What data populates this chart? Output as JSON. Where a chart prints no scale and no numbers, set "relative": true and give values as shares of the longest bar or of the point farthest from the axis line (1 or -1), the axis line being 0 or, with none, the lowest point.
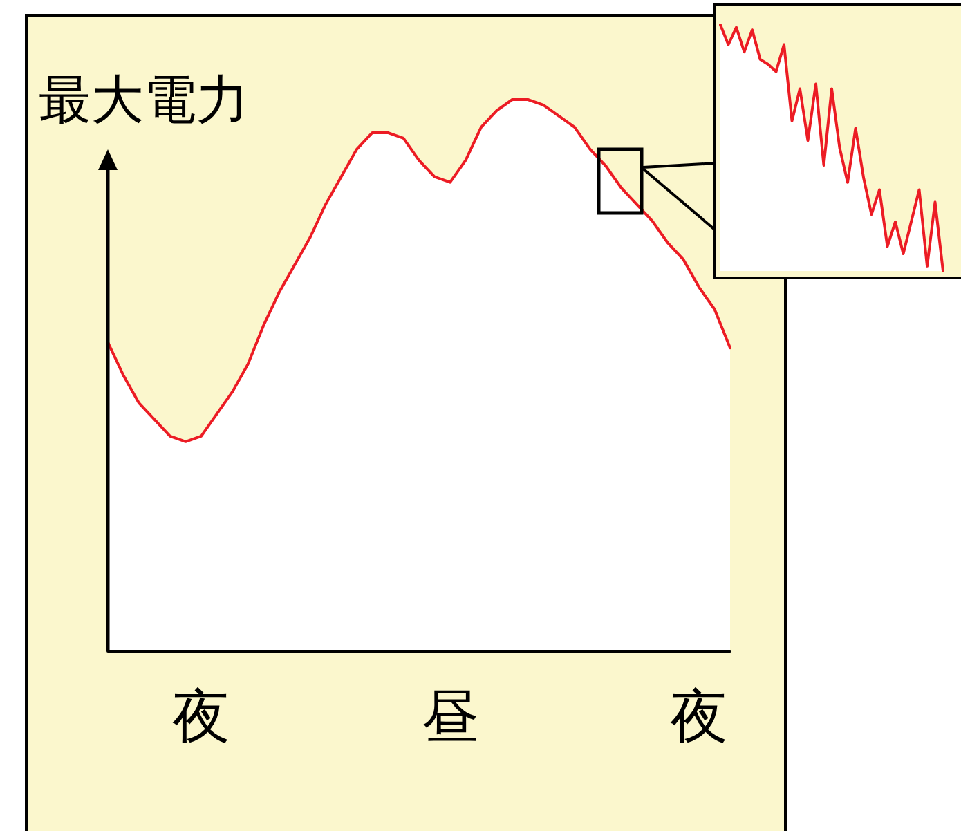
{
  "chart_data": [
    {
      "type": "area",
      "ylabel": "最大電力",
      "relative": true,
      "color": "#ec1c24",
      "categories": [
        null,
        null,
        null,
        null,
        null,
        null,
        "夜",
        null,
        null,
        null,
        null,
        null,
        null,
        null,
        null,
        null,
        null,
        null,
        null,
        null,
        null,
        null,
        "昼",
        null,
        null,
        null,
        null,
        null,
        null,
        null,
        null,
        null,
        null,
        null,
        null,
        null,
        null,
        null,
        "夜",
        null,
        null
      ],
      "values": [
        0.56,
        0.5,
        0.45,
        0.42,
        0.39,
        0.38,
        0.39,
        0.43,
        0.47,
        0.52,
        0.59,
        0.65,
        0.7,
        0.75,
        0.81,
        0.86,
        0.91,
        0.94,
        0.94,
        0.93,
        0.89,
        0.86,
        0.85,
        0.89,
        0.95,
        0.98,
        1.0,
        1.0,
        0.99,
        0.97,
        0.95,
        0.91,
        0.88,
        0.84,
        0.81,
        0.78,
        0.74,
        0.71,
        0.66,
        0.62,
        0.55
      ]
    },
    {
      "type": "area",
      "relative": true,
      "color": "#ec1c24",
      "categories": [
        null,
        null,
        null,
        null,
        null,
        null,
        null,
        null,
        null,
        null,
        null,
        null,
        null,
        null,
        null,
        null,
        null,
        null,
        null,
        null,
        null,
        null,
        null,
        null,
        null,
        null,
        null,
        null,
        null
      ],
      "values": [
        1.0,
        0.92,
        0.99,
        0.89,
        0.98,
        0.86,
        0.84,
        0.81,
        0.92,
        0.61,
        0.74,
        0.53,
        0.76,
        0.43,
        0.74,
        0.5,
        0.36,
        0.58,
        0.38,
        0.23,
        0.33,
        0.1,
        0.2,
        0.07,
        0.2,
        0.33,
        0.02,
        0.28,
        0.0
      ]
    }
  ]
}
